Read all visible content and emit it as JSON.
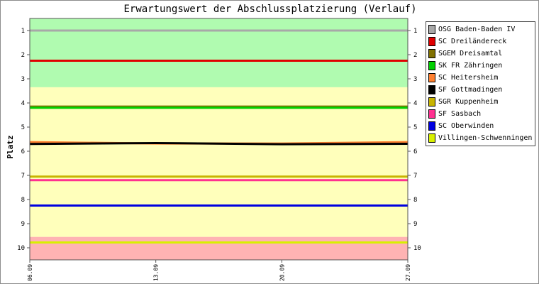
{
  "chart_data": {
    "type": "line",
    "title": "Erwartungswert der Abschlussplatzierung (Verlauf)",
    "xlabel": "",
    "ylabel": "Platz",
    "x": [
      "06.09",
      "13.09",
      "20.09",
      "27.09"
    ],
    "ylim": [
      10.5,
      0.5
    ],
    "yticks": [
      1,
      2,
      3,
      4,
      5,
      6,
      7,
      8,
      9,
      10
    ],
    "y_axis_inverted": true,
    "grid": false,
    "legend_position": "right",
    "bands": [
      {
        "from": 0.5,
        "to": 3.35,
        "color": "#b0fbb0"
      },
      {
        "from": 3.35,
        "to": 9.55,
        "color": "#ffffbb"
      },
      {
        "from": 9.55,
        "to": 10.5,
        "color": "#ffb3b3"
      }
    ],
    "series": [
      {
        "name": "OSG Baden-Baden IV",
        "color": "#a8a8a8",
        "values": [
          1.0,
          1.0,
          1.0,
          1.0
        ]
      },
      {
        "name": "SC Dreiländereck",
        "color": "#e00000",
        "values": [
          2.25,
          2.25,
          2.25,
          2.25
        ]
      },
      {
        "name": "SGEM Dreisamtal",
        "color": "#807000",
        "values": [
          4.15,
          4.15,
          4.15,
          4.15
        ]
      },
      {
        "name": "SK FR Zähringen",
        "color": "#00d000",
        "values": [
          4.2,
          4.2,
          4.2,
          4.2
        ]
      },
      {
        "name": "SC Heitersheim",
        "color": "#ff8030",
        "values": [
          5.62,
          5.68,
          5.68,
          5.62
        ]
      },
      {
        "name": "SF Gottmadingen",
        "color": "#000000",
        "values": [
          5.7,
          5.66,
          5.71,
          5.69
        ]
      },
      {
        "name": "SGR Kuppenheim",
        "color": "#c8b400",
        "values": [
          7.05,
          7.05,
          7.05,
          7.05
        ]
      },
      {
        "name": "SF Sasbach",
        "color": "#ff3090",
        "values": [
          7.2,
          7.2,
          7.2,
          7.2
        ]
      },
      {
        "name": "SC Oberwinden",
        "color": "#0000e0",
        "values": [
          8.25,
          8.25,
          8.25,
          8.25
        ]
      },
      {
        "name": "Villingen-Schwenningen",
        "color": "#d8f000",
        "values": [
          9.78,
          9.78,
          9.78,
          9.78
        ]
      }
    ]
  }
}
